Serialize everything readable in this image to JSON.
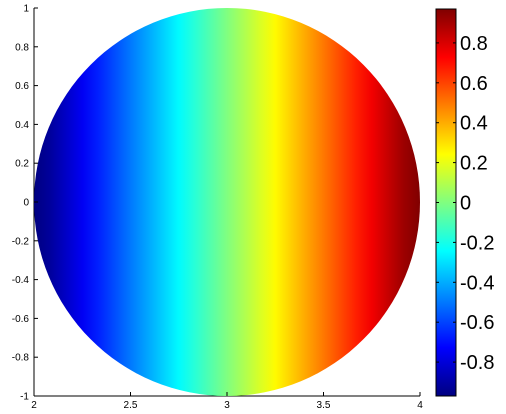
{
  "chart_data": {
    "type": "heatmap",
    "title": "",
    "xlabel": "",
    "ylabel": "",
    "xlim": [
      2,
      4
    ],
    "ylim": [
      -1,
      1
    ],
    "x_ticks": [
      "2",
      "2.5",
      "3",
      "3.5",
      "4"
    ],
    "y_ticks": [
      "1",
      "0.8",
      "0.6",
      "0.4",
      "0.2",
      "0",
      "-0.2",
      "-0.4",
      "-0.6",
      "-0.8",
      "-1"
    ],
    "domain": {
      "shape": "disk",
      "center": [
        3,
        0
      ],
      "radius": 1
    },
    "field": {
      "description": "value varies linearly with x; approx (x - 3)",
      "x": [
        2,
        4
      ],
      "value": [
        -1,
        1
      ]
    },
    "colorbar": {
      "colormap": "jet",
      "clim": [
        -0.97,
        0.97
      ],
      "ticks": [
        "0.8",
        "0.6",
        "0.4",
        "0.2",
        "0",
        "-0.2",
        "-0.4",
        "-0.6",
        "-0.8"
      ]
    },
    "grid": false
  }
}
